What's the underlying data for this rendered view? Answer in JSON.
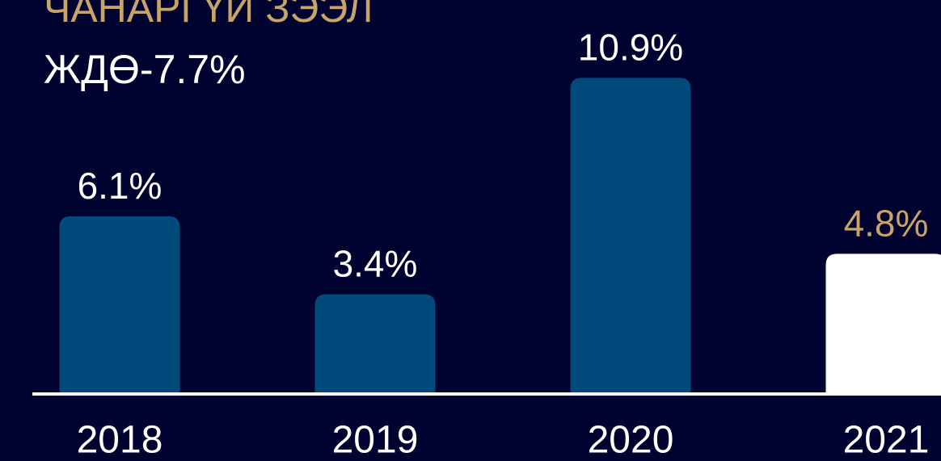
{
  "chart_data": {
    "type": "bar",
    "title": "ЧАНАРГҮЙ ЗЭЭЛ",
    "subtitle": "ЖДӨ-7.7%",
    "categories": [
      "2018",
      "2019",
      "2020",
      "2021"
    ],
    "values": [
      6.1,
      3.4,
      10.9,
      4.8
    ],
    "value_labels": [
      "6.1%",
      "3.4%",
      "10.9%",
      "4.8%"
    ],
    "colors": [
      "#004a7c",
      "#004a7c",
      "#004a7c",
      "#ffffff"
    ],
    "label_colors": [
      "#ffffff",
      "#ffffff",
      "#ffffff",
      "#c9a46a"
    ],
    "ylim": [
      0,
      12
    ],
    "grid": false
  }
}
